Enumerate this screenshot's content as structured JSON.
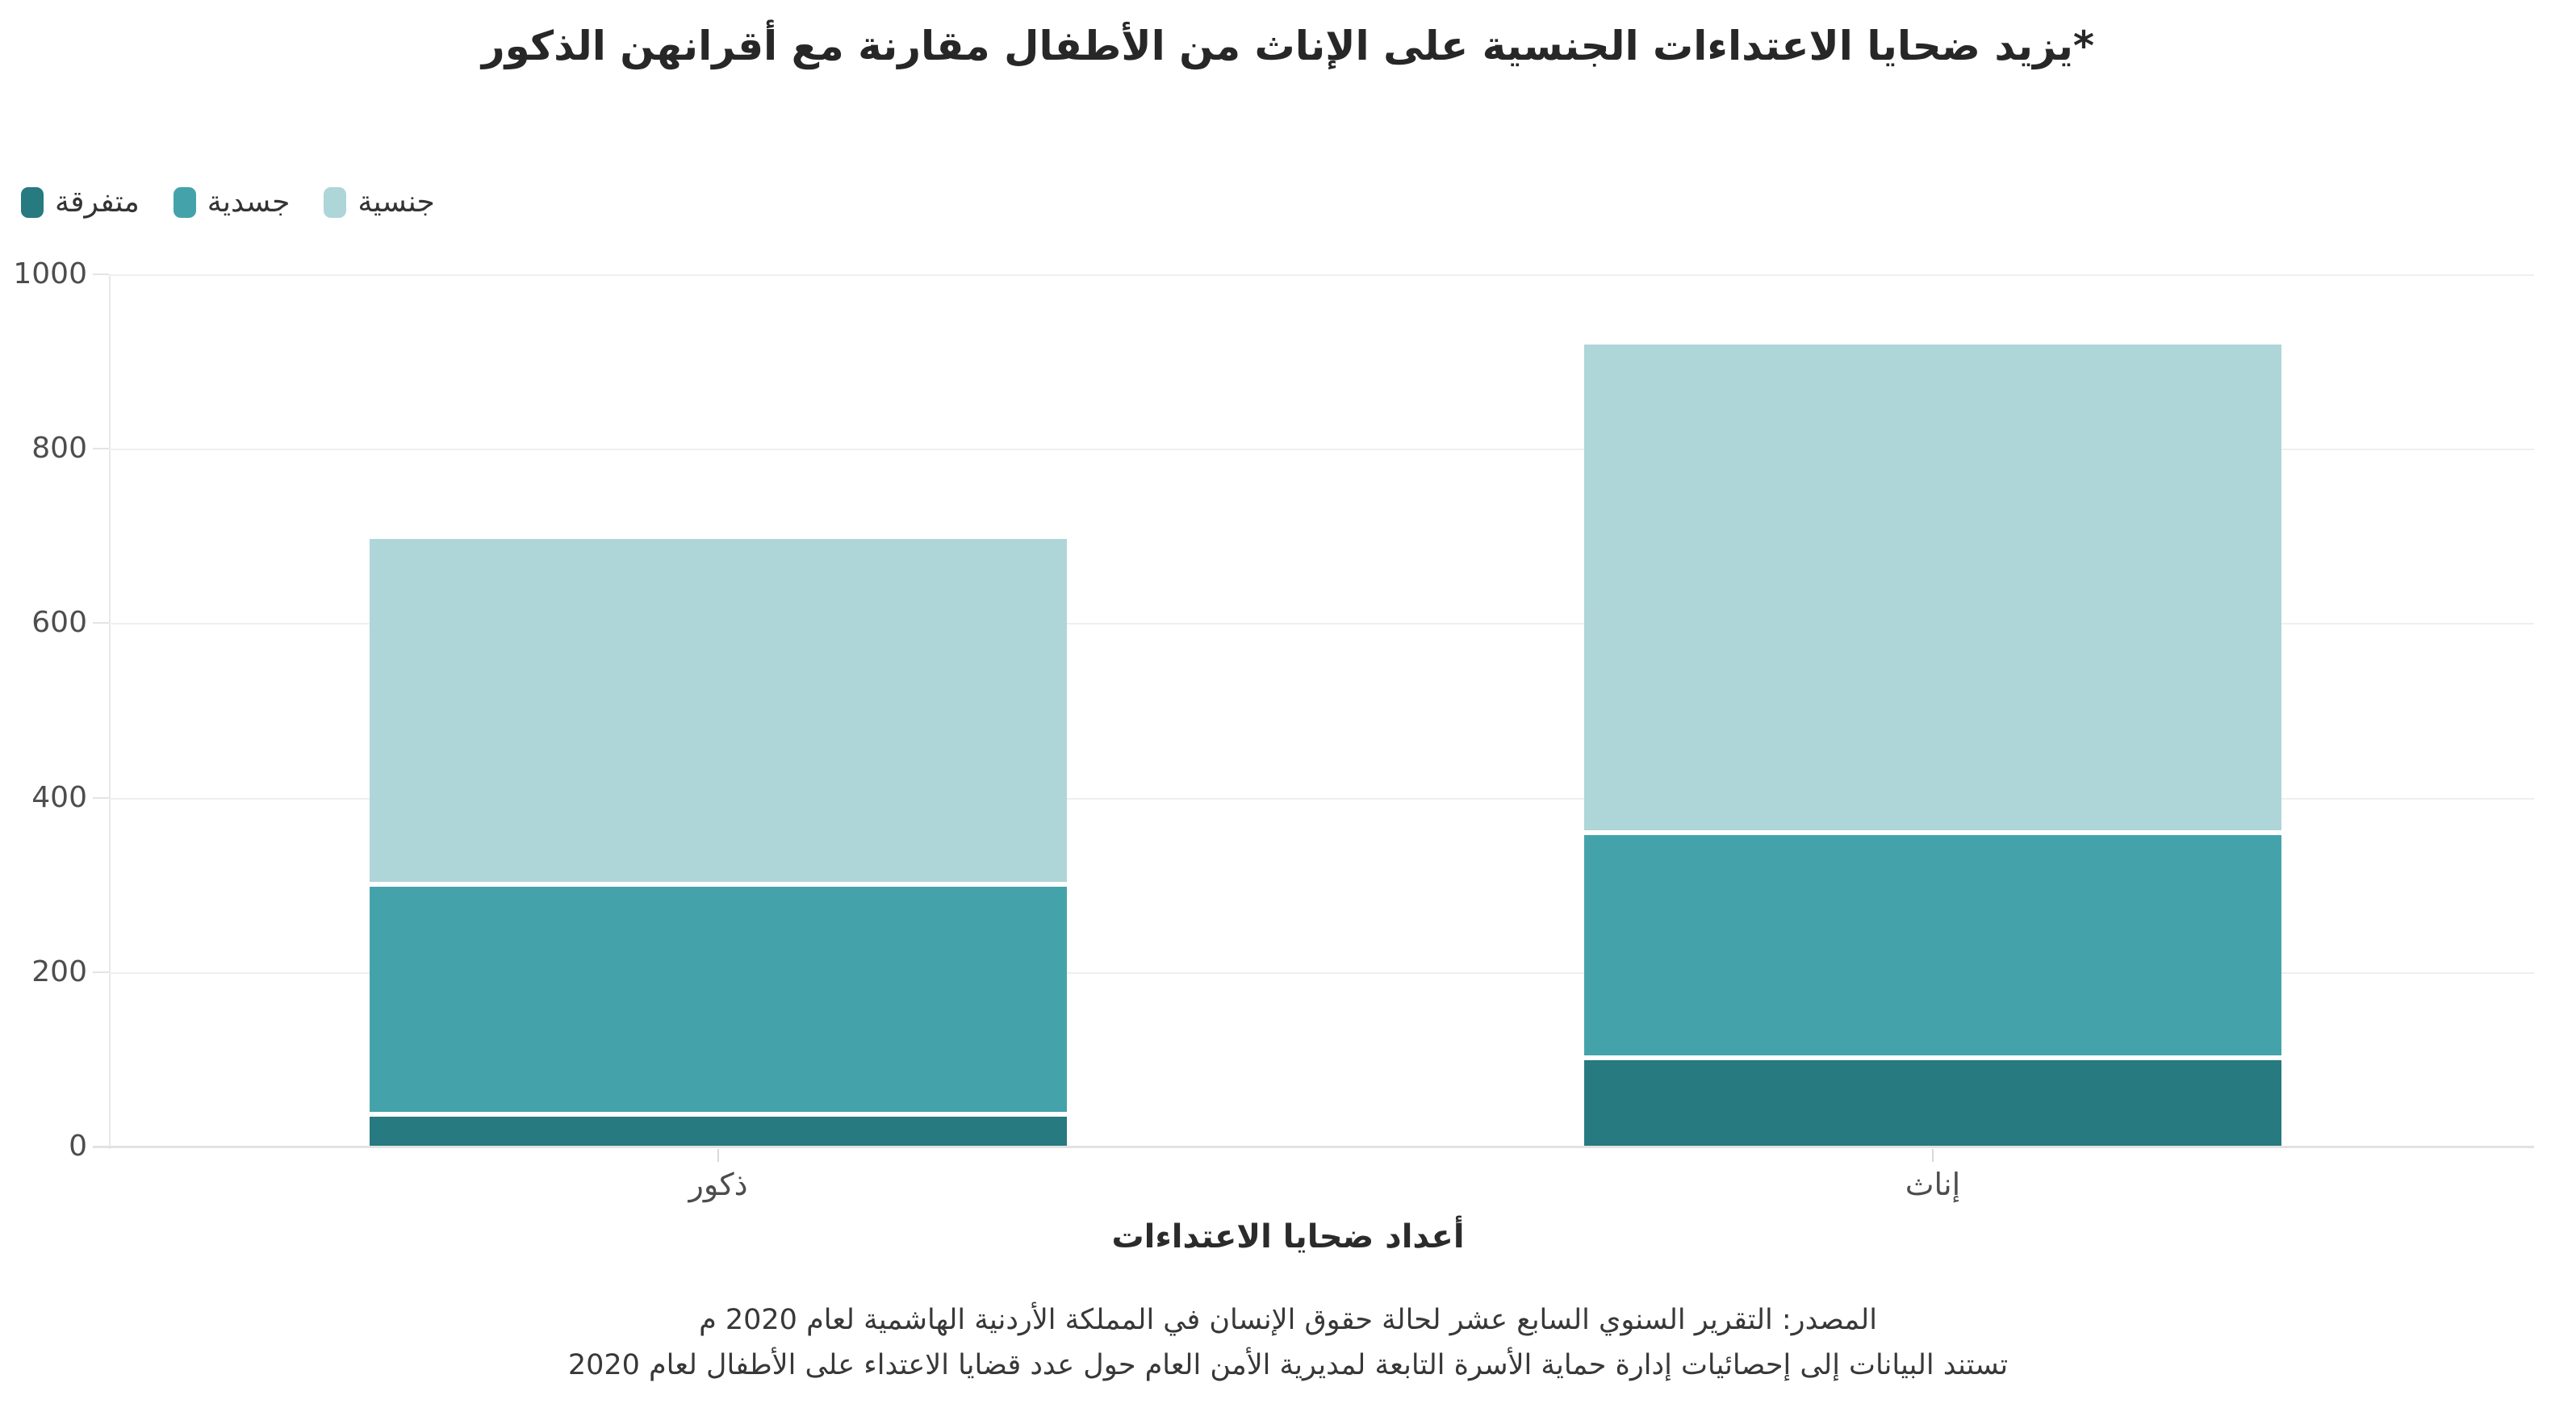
{
  "page": {
    "background": "#ffffff"
  },
  "title": "*يزيد ضحايا الاعتداءات الجنسية على الإناث من الأطفال مقارنة مع أقرانهن الذكور",
  "footer": {
    "line1": "المصدر: التقرير السنوي السابع عشر لحالة حقوق الإنسان في المملكة الأردنية الهاشمية لعام 2020 م",
    "line2": "تستند البيانات إلى إحصائيات إدارة حماية الأسرة التابعة لمديرية الأمن العام حول عدد قضايا الاعتداء على الأطفال لعام 2020"
  },
  "chart_data": {
    "type": "bar",
    "stacked": true,
    "text_direction": "rtl",
    "title": "*يزيد ضحايا الاعتداءات الجنسية على الإناث من الأطفال مقارنة مع أقرانهن الذكور",
    "xlabel": "أعداد ضحايا الاعتداءات",
    "ylabel": "",
    "categories": [
      "ذكور",
      "إناث"
    ],
    "series": [
      {
        "name": "متفرقة",
        "color": "#267A80",
        "values": [
          40,
          105
        ]
      },
      {
        "name": "جسدية",
        "color": "#44A3AA",
        "values": [
          263,
          258
        ]
      },
      {
        "name": "جنسية",
        "color": "#AED5D8",
        "values": [
          394,
          557
        ]
      }
    ],
    "totals": [
      697,
      920
    ],
    "ylim": [
      0,
      1000
    ],
    "y_ticks": [
      0,
      200,
      400,
      600,
      800,
      1000
    ],
    "grid": true,
    "gridline_color": "#efefef",
    "legend_position": "top-left",
    "legend_order": [
      "متفرقة",
      "جسدية",
      "جنسية"
    ]
  }
}
